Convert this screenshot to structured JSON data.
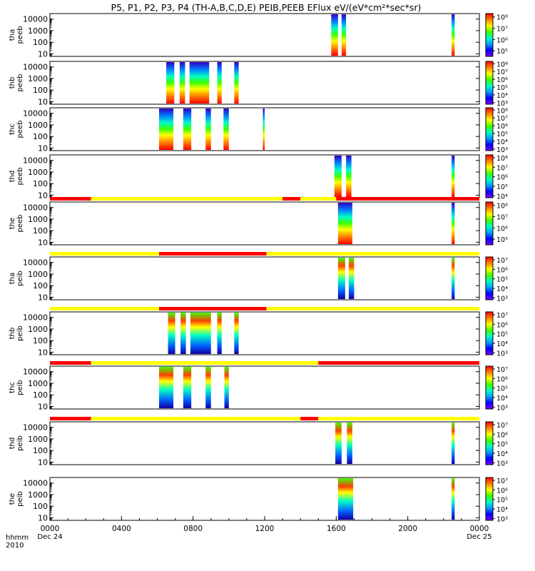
{
  "chart_data": {
    "type": "heatmap",
    "title": "P5, P1, P2, P3, P4 (TH-A,B,C,D,E) PEIB,PEEB EFlux eV/(eV*cm²*sec*sr)",
    "time_axis": {
      "label_line1": "hhmm",
      "label_line2": "2010",
      "range_hours": [
        0,
        24
      ],
      "ticks": [
        {
          "hour": 0,
          "label": "0000",
          "sub": "Dec 24"
        },
        {
          "hour": 4,
          "label": "0400",
          "sub": ""
        },
        {
          "hour": 8,
          "label": "0800",
          "sub": ""
        },
        {
          "hour": 12,
          "label": "1200",
          "sub": ""
        },
        {
          "hour": 16,
          "label": "1600",
          "sub": ""
        },
        {
          "hour": 20,
          "label": "2000",
          "sub": ""
        },
        {
          "hour": 24,
          "label": "0000",
          "sub": "Dec 25"
        }
      ]
    },
    "y_axis": {
      "scale": "log",
      "range_eV": [
        6,
        30000
      ],
      "tick_values": [
        10,
        100,
        1000,
        10000
      ],
      "tick_labels": [
        "10",
        "100",
        "1000",
        "10000"
      ]
    },
    "colormap": [
      "#8000ff",
      "#0000ff",
      "#00a0ff",
      "#00ffc0",
      "#40ff00",
      "#ffff00",
      "#ff8000",
      "#ff0000"
    ],
    "mode_bar_colors": {
      "fast": "#ff0000",
      "slow": "#ffff00"
    },
    "panels": [
      {
        "line1": "tha",
        "line2": "peeb",
        "cb_labels": [
          "10⁵",
          "10⁶",
          "10⁷",
          "10⁸"
        ],
        "cb_range": [
          4.5,
          8.3
        ],
        "bursts": [
          [
            15.72,
            16.1
          ],
          [
            16.3,
            16.55
          ],
          [
            22.45,
            22.62
          ]
        ],
        "mode_bar": null
      },
      {
        "line1": "thb",
        "line2": "peeb",
        "cb_labels": [
          "10³",
          "10⁴",
          "10⁵",
          "10⁶",
          "10⁷",
          "10⁸"
        ],
        "cb_range": [
          2.8,
          8.3
        ],
        "bursts": [
          [
            6.5,
            6.95
          ],
          [
            7.25,
            7.55
          ],
          [
            7.8,
            8.9
          ],
          [
            9.35,
            9.6
          ],
          [
            10.3,
            10.55
          ]
        ],
        "mode_bar": null
      },
      {
        "line1": "thc",
        "line2": "peeb",
        "cb_labels": [
          "10³",
          "10⁴",
          "10⁵",
          "10⁶",
          "10⁷",
          "10⁸"
        ],
        "cb_range": [
          2.8,
          8.3
        ],
        "bursts": [
          [
            6.1,
            6.9
          ],
          [
            7.45,
            7.9
          ],
          [
            8.7,
            9.0
          ],
          [
            9.7,
            10.0
          ],
          [
            11.9,
            12.0
          ]
        ],
        "mode_bar": null
      },
      {
        "line1": "thd",
        "line2": "peeb",
        "cb_labels": [
          "10⁴",
          "10⁵",
          "10⁶",
          "10⁷",
          "10⁸"
        ],
        "cb_range": [
          3.8,
          8.3
        ],
        "bursts": [
          [
            15.9,
            16.3
          ],
          [
            16.55,
            16.85
          ],
          [
            22.45,
            22.62
          ]
        ],
        "mode_bar": null
      },
      {
        "line1": "the",
        "line2": "peeb",
        "cb_labels": [
          "10⁵",
          "10⁶",
          "10⁷",
          "10⁸"
        ],
        "cb_range": [
          4.5,
          8.3
        ],
        "bursts": [
          [
            16.1,
            16.9
          ],
          [
            22.45,
            22.62
          ]
        ],
        "mode_bar": [
          [
            "#ff0000",
            0,
            2.3
          ],
          [
            "#ffff00",
            2.3,
            13.0
          ],
          [
            "#ff0000",
            13.0,
            14.0
          ],
          [
            "#ffff00",
            14.0,
            16.0
          ],
          [
            "#ff0000",
            16.0,
            24
          ]
        ]
      },
      {
        "line1": "tha",
        "line2": "peib",
        "cb_labels": [
          "10³",
          "10⁴",
          "10⁵",
          "10⁶",
          "10⁷"
        ],
        "cb_range": [
          2.8,
          7.3
        ],
        "bursts": [
          [
            16.1,
            16.5
          ],
          [
            16.7,
            17.0
          ],
          [
            22.45,
            22.62
          ]
        ],
        "mode_bar": [
          [
            "#ffff00",
            0,
            6.1
          ],
          [
            "#ff0000",
            6.1,
            12.1
          ],
          [
            "#ffff00",
            12.1,
            24
          ]
        ]
      },
      {
        "line1": "thb",
        "line2": "peib",
        "cb_labels": [
          "10³",
          "10⁴",
          "10⁵",
          "10⁶",
          "10⁷"
        ],
        "cb_range": [
          2.8,
          7.3
        ],
        "bursts": [
          [
            6.6,
            7.0
          ],
          [
            7.3,
            7.6
          ],
          [
            7.85,
            9.0
          ],
          [
            9.35,
            9.6
          ],
          [
            10.3,
            10.55
          ]
        ],
        "mode_bar": [
          [
            "#ffff00",
            0,
            6.1
          ],
          [
            "#ff0000",
            6.1,
            12.1
          ],
          [
            "#ffff00",
            12.1,
            24
          ]
        ]
      },
      {
        "line1": "thc",
        "line2": "peib",
        "cb_labels": [
          "10³",
          "10⁴",
          "10⁵",
          "10⁶",
          "10⁷"
        ],
        "cb_range": [
          2.8,
          7.3
        ],
        "bursts": [
          [
            6.1,
            6.9
          ],
          [
            7.45,
            7.9
          ],
          [
            8.7,
            9.0
          ],
          [
            9.75,
            10.0
          ]
        ],
        "mode_bar": [
          [
            "#ff0000",
            0,
            2.3
          ],
          [
            "#ffff00",
            2.3,
            15.0
          ],
          [
            "#ff0000",
            15.0,
            24
          ]
        ]
      },
      {
        "line1": "thd",
        "line2": "peib",
        "cb_labels": [
          "10³",
          "10⁴",
          "10⁵",
          "10⁶",
          "10⁷"
        ],
        "cb_range": [
          2.8,
          7.3
        ],
        "bursts": [
          [
            15.95,
            16.3
          ],
          [
            16.6,
            16.9
          ],
          [
            22.45,
            22.62
          ]
        ],
        "mode_bar": [
          [
            "#ff0000",
            0,
            2.3
          ],
          [
            "#ffff00",
            2.3,
            14.0
          ],
          [
            "#ff0000",
            14.0,
            15.0
          ],
          [
            "#ffff00",
            15.0,
            24
          ]
        ]
      },
      {
        "line1": "the",
        "line2": "peib",
        "cb_labels": [
          "10³",
          "10⁴",
          "10⁵",
          "10⁶",
          "10⁷"
        ],
        "cb_range": [
          2.8,
          7.3
        ],
        "bursts": [
          [
            16.1,
            16.95
          ],
          [
            22.45,
            22.62
          ]
        ],
        "mode_bar": null
      }
    ]
  }
}
